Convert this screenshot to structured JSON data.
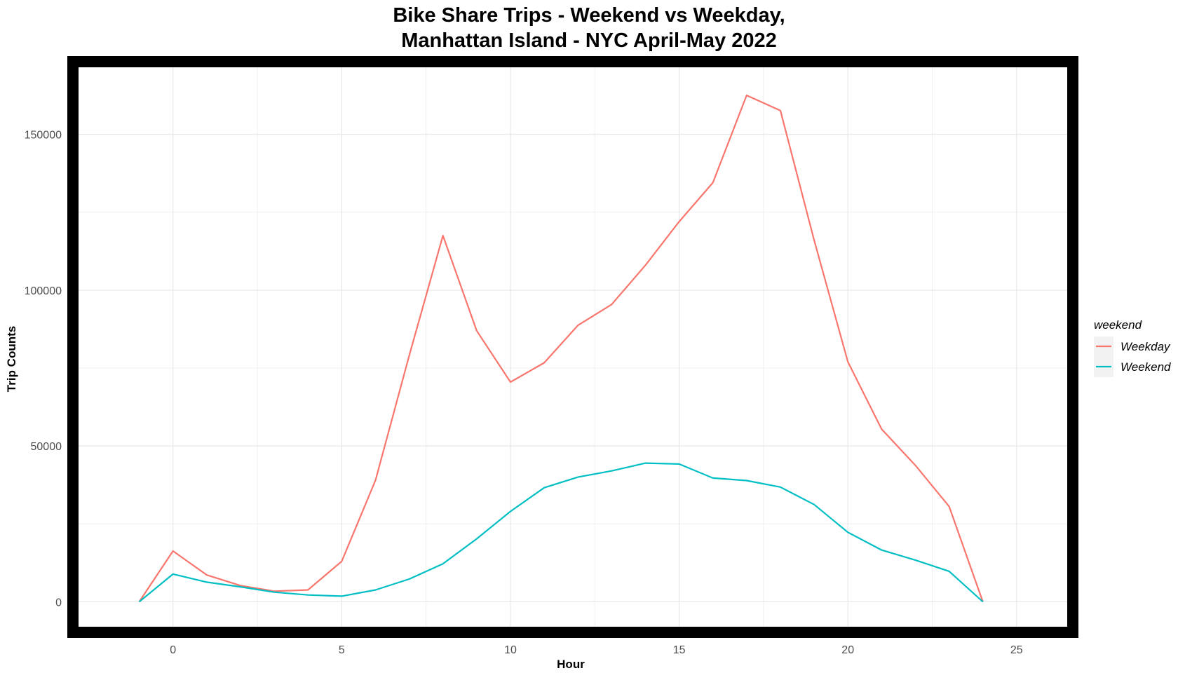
{
  "chart_data": {
    "type": "line",
    "title_lines": [
      "Bike Share Trips - Weekend vs Weekday,",
      "Manhattan Island - NYC April-May 2022"
    ],
    "xlabel": "Hour",
    "ylabel": "Trip Counts",
    "xlim": [
      -2.8,
      26.5
    ],
    "ylim": [
      -8000,
      171500
    ],
    "x_ticks": [
      0,
      5,
      10,
      15,
      20,
      25
    ],
    "x_tick_labels": [
      "0",
      "5",
      "10",
      "15",
      "20",
      "25"
    ],
    "y_ticks": [
      0,
      50000,
      100000,
      150000
    ],
    "y_tick_labels": [
      "0",
      "50000",
      "100000",
      "150000"
    ],
    "grid": true,
    "legend": {
      "title": "weekend",
      "position": "right"
    },
    "x": [
      -1,
      0,
      1,
      2,
      3,
      4,
      5,
      6,
      7,
      8,
      9,
      10,
      11,
      12,
      13,
      14,
      15,
      16,
      17,
      18,
      19,
      20,
      21,
      22,
      23,
      24
    ],
    "series": [
      {
        "name": "Weekday",
        "color": "#F8766D",
        "values": [
          0,
          16300,
          8600,
          5200,
          3400,
          3800,
          13000,
          39000,
          79000,
          117500,
          87000,
          70500,
          76700,
          88700,
          95400,
          108000,
          122000,
          134500,
          162500,
          157600,
          116000,
          77000,
          55400,
          43800,
          30600,
          0
        ]
      },
      {
        "name": "Weekend",
        "color": "#00BFC4",
        "values": [
          0,
          8900,
          6300,
          4800,
          3100,
          2200,
          1800,
          3800,
          7300,
          12200,
          20200,
          29000,
          36600,
          40000,
          42000,
          44500,
          44200,
          39700,
          38900,
          36800,
          31200,
          22300,
          16600,
          13400,
          9800,
          0
        ]
      }
    ]
  }
}
